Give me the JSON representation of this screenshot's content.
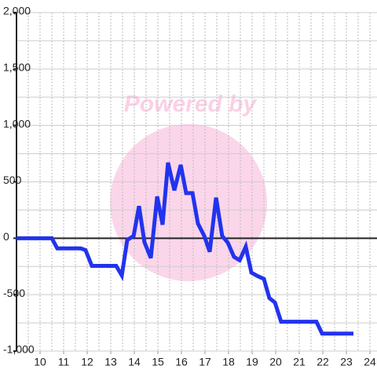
{
  "chart_data": {
    "type": "line",
    "watermark": "Powered by",
    "x": [
      9,
      10.5,
      10.73,
      11.73,
      11.93,
      12.2,
      13.23,
      13.47,
      13.7,
      13.97,
      14.2,
      14.43,
      14.7,
      14.97,
      15.2,
      15.43,
      15.7,
      15.97,
      16.2,
      16.47,
      16.7,
      16.97,
      17.2,
      17.47,
      17.73,
      17.97,
      18.23,
      18.47,
      18.73,
      18.97,
      19.23,
      19.5,
      19.73,
      19.97,
      20.23,
      21.73,
      21.97,
      23.3
    ],
    "series": [
      {
        "color": "#2233ee",
        "values": [
          0,
          0,
          -90,
          -90,
          -105,
          -245,
          -245,
          -330,
          -15,
          20,
          285,
          -35,
          -175,
          370,
          120,
          670,
          425,
          650,
          400,
          400,
          130,
          20,
          -120,
          360,
          20,
          -40,
          -165,
          -195,
          -75,
          -305,
          -335,
          -360,
          -530,
          -570,
          -740,
          -740,
          -845,
          -845
        ]
      }
    ],
    "xlim": [
      9,
      24.3
    ],
    "xticks": [
      10,
      11,
      12,
      13,
      14,
      15,
      16,
      17,
      18,
      19,
      20,
      21,
      22,
      23,
      24
    ],
    "ylim": [
      -1000,
      2000
    ],
    "yticks": [
      {
        "value": 2000,
        "label": "2,000"
      },
      {
        "value": 1500,
        "label": "1,500"
      },
      {
        "value": 1000,
        "label": "1,000"
      },
      500,
      0,
      -500,
      {
        "value": -1000,
        "label": "-1,000"
      }
    ],
    "ygrid": [
      -1000,
      -750,
      -500,
      -250,
      0,
      250,
      500,
      750,
      1000,
      1250,
      1500,
      1750,
      2000
    ],
    "xgrid": [
      9.5,
      10,
      10.5,
      11,
      11.5,
      12,
      12.5,
      13,
      13.5,
      14,
      14.5,
      15,
      15.5,
      16,
      16.5,
      17,
      17.5,
      18,
      18.5,
      19,
      19.5,
      20,
      20.5,
      21,
      21.5,
      22,
      22.5,
      23,
      23.5,
      24
    ]
  }
}
